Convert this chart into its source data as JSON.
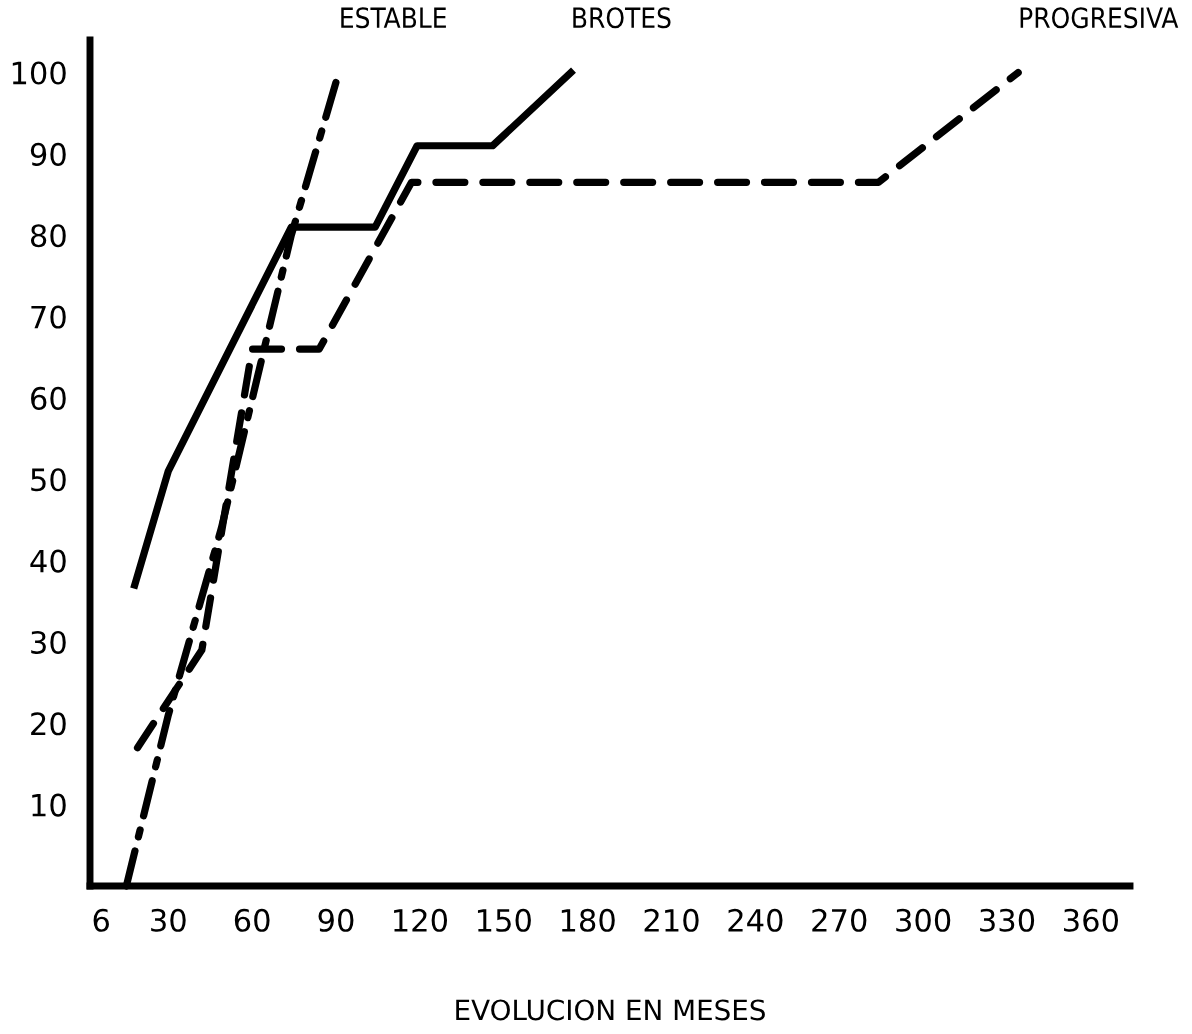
{
  "chart_data": {
    "type": "line",
    "xlabel": "EVOLUCION EN MESES",
    "series": [
      {
        "name": "ESTABLE",
        "color": "#000000",
        "line_style": "dashdot",
        "x": [
          15,
          30,
          49,
          74,
          91
        ],
        "values": [
          0,
          21,
          44,
          80,
          100
        ]
      },
      {
        "name": "BROTES",
        "color": "#000000",
        "line_style": "solid",
        "x": [
          18,
          30,
          74,
          104,
          119,
          146,
          174
        ],
        "values": [
          37,
          51,
          81,
          81,
          91,
          91,
          100
        ]
      },
      {
        "name": "PROGRESIVA",
        "color": "#000000",
        "line_style": "dashed",
        "x": [
          19,
          42,
          60,
          84,
          117,
          284,
          334
        ],
        "values": [
          17,
          29,
          66,
          66,
          86.5,
          86.5,
          100
        ]
      }
    ],
    "xlim": [
      2,
      374
    ],
    "xticks": [
      6,
      30,
      60,
      90,
      120,
      150,
      180,
      210,
      240,
      270,
      300,
      330,
      360
    ],
    "ylim": [
      0,
      104
    ],
    "yticks": [
      10,
      20,
      30,
      40,
      50,
      60,
      70,
      80,
      90,
      100
    ],
    "grid": false,
    "legend": false,
    "marker": "none"
  }
}
